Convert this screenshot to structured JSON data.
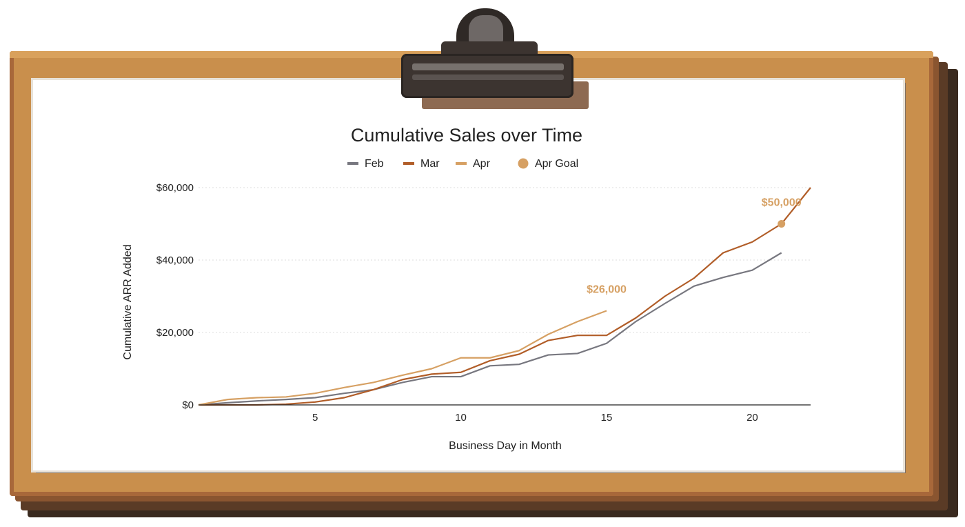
{
  "chart_data": {
    "type": "line",
    "title": "Cumulative Sales over Time",
    "xlabel": "Business Day in Month",
    "ylabel": "Cumulative ARR Added",
    "xlim": [
      1,
      22
    ],
    "ylim": [
      0,
      60000
    ],
    "x_ticks": [
      5,
      10,
      15,
      20
    ],
    "y_ticks": [
      0,
      20000,
      40000,
      60000
    ],
    "y_tick_labels": [
      "$0",
      "$20,000",
      "$40,000",
      "$60,000"
    ],
    "grid": "horizontal",
    "legend_position": "top",
    "series": [
      {
        "name": "Feb",
        "color": "#77777f",
        "x": [
          1,
          2,
          3,
          4,
          5,
          6,
          7,
          8,
          9,
          10,
          11,
          12,
          13,
          14,
          15,
          16,
          17,
          18,
          19,
          20,
          21
        ],
        "y": [
          0,
          600,
          1100,
          1500,
          2000,
          3200,
          4200,
          6200,
          7800,
          7800,
          10800,
          11200,
          13800,
          14200,
          17000,
          23000,
          28000,
          32800,
          35200,
          37200,
          42000
        ]
      },
      {
        "name": "Mar",
        "color": "#b15d28",
        "x": [
          1,
          2,
          3,
          4,
          5,
          6,
          7,
          8,
          9,
          10,
          11,
          12,
          13,
          14,
          15,
          16,
          17,
          18,
          19,
          20,
          21,
          22
        ],
        "y": [
          0,
          0,
          0,
          200,
          800,
          2000,
          4200,
          7000,
          8500,
          9000,
          12200,
          14000,
          17800,
          19200,
          19200,
          24000,
          30000,
          35000,
          42000,
          45000,
          50000,
          60000
        ]
      },
      {
        "name": "Apr",
        "color": "#d6a063",
        "x": [
          1,
          2,
          3,
          4,
          5,
          6,
          7,
          8,
          9,
          10,
          11,
          12,
          13,
          14,
          15
        ],
        "y": [
          0,
          1500,
          2000,
          2200,
          3200,
          4800,
          6200,
          8200,
          10000,
          13000,
          13000,
          15000,
          19500,
          23000,
          26000
        ]
      },
      {
        "name": "Apr Goal",
        "color": "#d6a063",
        "marker": "circle",
        "x": [
          21
        ],
        "y": [
          50000
        ]
      }
    ],
    "annotations": [
      {
        "text": "$26,000",
        "x": 15,
        "y": 26000,
        "color": "#d6a063"
      },
      {
        "text": "$50,000",
        "x": 21,
        "y": 50000,
        "color": "#d6a063"
      }
    ]
  }
}
